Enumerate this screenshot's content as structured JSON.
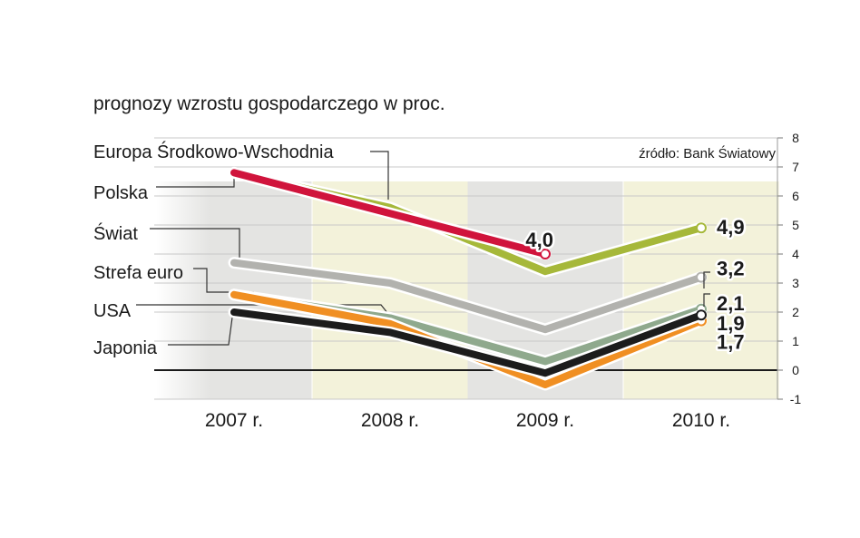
{
  "chart_data": {
    "type": "line",
    "title": "prognozy wzrostu gospodarczego w proc.",
    "source": "źródło: Bank Światowy",
    "categories": [
      "2007 r.",
      "2008 r.",
      "2009 r.",
      "2010 r."
    ],
    "ylim": [
      -1,
      8
    ],
    "yticks": [
      "-1",
      "0",
      "1",
      "2",
      "3",
      "4",
      "5",
      "6",
      "7",
      "8"
    ],
    "grid": true,
    "legend": "left",
    "series": [
      {
        "name": "Europa Środkowo-Wschodnia",
        "color": "#a6b83a",
        "values": [
          6.8,
          5.6,
          3.4,
          4.9
        ],
        "end_label": "4,9"
      },
      {
        "name": "Polska",
        "color": "#d0143c",
        "values": [
          6.8,
          5.4,
          4.0,
          null
        ],
        "end_label": "4,0"
      },
      {
        "name": "Świat",
        "color": "#b2b2ae",
        "values": [
          3.7,
          3.0,
          1.4,
          3.2
        ],
        "end_label": "3,2"
      },
      {
        "name": "Strefa euro",
        "color": "#8fa98d",
        "values": [
          2.6,
          1.8,
          0.3,
          2.1
        ],
        "end_label": "2,1"
      },
      {
        "name": "USA",
        "color": "#1c1c1c",
        "values": [
          2.0,
          1.3,
          -0.1,
          1.9
        ],
        "end_label": "1,9"
      },
      {
        "name": "Japonia",
        "color": "#f08f22",
        "values": [
          2.6,
          1.6,
          -0.5,
          1.7
        ],
        "end_label": "1,7"
      }
    ]
  }
}
